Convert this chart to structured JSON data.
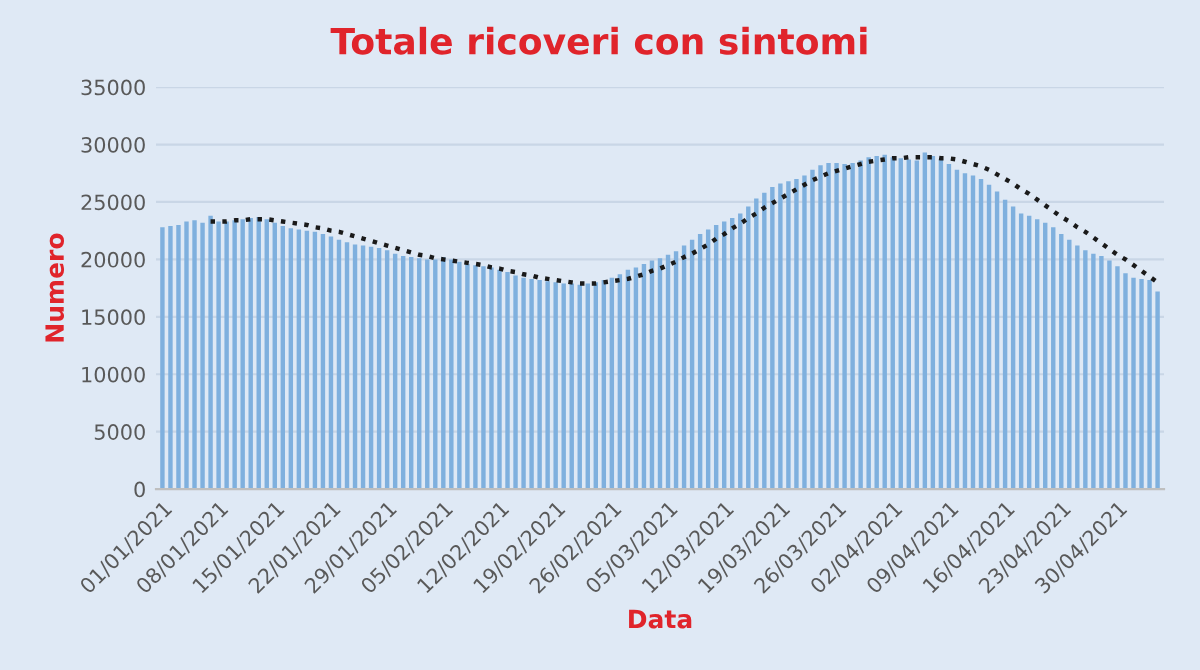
{
  "chart_data": {
    "type": "bar",
    "title": "Totale ricoveri con sintomi",
    "xlabel": "Data",
    "ylabel": "Numero",
    "categories": [
      "01/01/2021",
      null,
      null,
      null,
      null,
      null,
      null,
      "08/01/2021",
      null,
      null,
      null,
      null,
      null,
      null,
      "15/01/2021",
      null,
      null,
      null,
      null,
      null,
      null,
      "22/01/2021",
      null,
      null,
      null,
      null,
      null,
      null,
      "29/01/2021",
      null,
      null,
      null,
      null,
      null,
      null,
      "05/02/2021",
      null,
      null,
      null,
      null,
      null,
      null,
      "12/02/2021",
      null,
      null,
      null,
      null,
      null,
      null,
      "19/02/2021",
      null,
      null,
      null,
      null,
      null,
      null,
      "26/02/2021",
      null,
      null,
      null,
      null,
      null,
      null,
      "05/03/2021",
      null,
      null,
      null,
      null,
      null,
      null,
      "12/03/2021",
      null,
      null,
      null,
      null,
      null,
      null,
      "19/03/2021",
      null,
      null,
      null,
      null,
      null,
      null,
      "26/03/2021",
      null,
      null,
      null,
      null,
      null,
      null,
      "02/04/2021",
      null,
      null,
      null,
      null,
      null,
      null,
      "09/04/2021",
      null,
      null,
      null,
      null,
      null,
      null,
      "16/04/2021",
      null,
      null,
      null,
      null,
      null,
      null,
      "23/04/2021",
      null,
      null,
      null,
      null,
      null,
      null,
      "30/04/2021",
      null,
      null,
      null,
      null,
      null
    ],
    "series": [
      {
        "color": "#7fb0de",
        "values": [
          22800,
          22900,
          23000,
          23300,
          23400,
          23200,
          23800,
          23300,
          23300,
          23400,
          23500,
          23600,
          23700,
          23500,
          23200,
          22900,
          22700,
          22600,
          22500,
          22400,
          22200,
          22000,
          21700,
          21500,
          21300,
          21200,
          21100,
          21000,
          20800,
          20500,
          20300,
          20200,
          20100,
          20000,
          20000,
          20200,
          20000,
          19800,
          19600,
          19500,
          19400,
          19300,
          19100,
          18900,
          18600,
          18400,
          18300,
          18200,
          18100,
          18000,
          17900,
          17900,
          17800,
          17900,
          18000,
          18200,
          18400,
          18700,
          19100,
          19300,
          19600,
          19900,
          20100,
          20400,
          20700,
          21200,
          21700,
          22200,
          22600,
          23000,
          23300,
          23600,
          24000,
          24600,
          25300,
          25800,
          26300,
          26600,
          26800,
          27000,
          27300,
          27800,
          28200,
          28400,
          28400,
          28300,
          28400,
          28600,
          28900,
          29000,
          29100,
          28900,
          28800,
          28700,
          28600,
          29300,
          29000,
          28700,
          28300,
          27800,
          27500,
          27300,
          27000,
          26500,
          25900,
          25200,
          24600,
          24000,
          23800,
          23500,
          23200,
          22800,
          22200,
          21700,
          21200,
          20800,
          20500,
          20300,
          19900,
          19400,
          18800,
          18400,
          18300,
          18200,
          17200
        ]
      },
      {
        "type": "line",
        "color": "#1a1a1a",
        "line_style": "dotted",
        "marker": "none",
        "values": [
          null,
          null,
          null,
          null,
          null,
          null,
          23300,
          23300,
          23300,
          23400,
          23400,
          23500,
          23500,
          23500,
          23400,
          23300,
          23200,
          23100,
          23000,
          22800,
          22700,
          22500,
          22400,
          22200,
          22000,
          21800,
          21600,
          21400,
          21200,
          21000,
          20800,
          20600,
          20400,
          20300,
          20100,
          20000,
          19900,
          19800,
          19700,
          19600,
          19500,
          19300,
          19200,
          19000,
          18900,
          18700,
          18600,
          18400,
          18300,
          18200,
          18100,
          18000,
          17900,
          17900,
          17900,
          18000,
          18100,
          18200,
          18300,
          18500,
          18700,
          19000,
          19200,
          19500,
          19800,
          20200,
          20500,
          20900,
          21300,
          21800,
          22200,
          22700,
          23100,
          23600,
          24000,
          24500,
          24900,
          25300,
          25700,
          26100,
          26500,
          26900,
          27200,
          27500,
          27700,
          27900,
          28100,
          28300,
          28500,
          28600,
          28700,
          28800,
          28800,
          28900,
          28900,
          28900,
          28900,
          28800,
          28800,
          28700,
          28500,
          28300,
          28100,
          27800,
          27400,
          27000,
          26600,
          26100,
          25700,
          25200,
          24700,
          24200,
          23700,
          23300,
          22800,
          22400,
          21900,
          21400,
          20900,
          20400,
          20000,
          19500,
          19000,
          18500,
          18000
        ]
      }
    ],
    "ylim": [
      0,
      35000
    ],
    "yticks": [
      0,
      5000,
      10000,
      15000,
      20000,
      25000,
      30000,
      35000
    ],
    "grid": "y",
    "legend": false
  }
}
